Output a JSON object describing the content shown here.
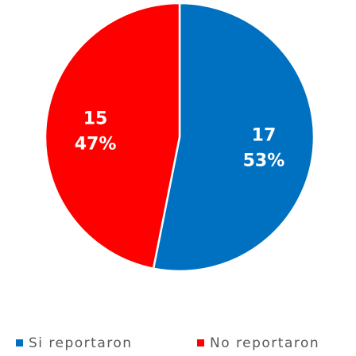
{
  "chart_data": {
    "type": "pie",
    "slices": [
      {
        "name": "Si reportaron",
        "value": 17,
        "percent_label": "53%",
        "color": "#0070C0"
      },
      {
        "name": "No reportaron",
        "value": 15,
        "percent_label": "47%",
        "color": "#FF0000"
      }
    ],
    "title": "",
    "legend": "bottom",
    "slice_border_color": "#ffffff",
    "label_color": "#ffffff"
  }
}
